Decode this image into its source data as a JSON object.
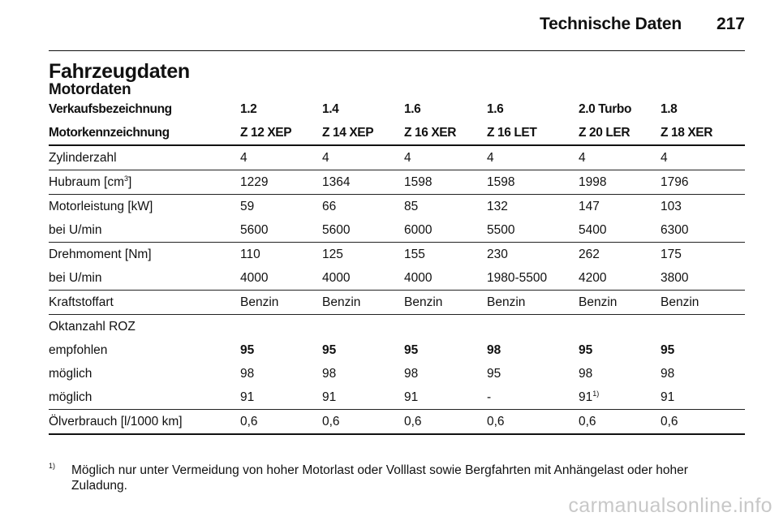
{
  "header": {
    "title": "Technische Daten",
    "page_number": "217"
  },
  "section_title": "Fahrzeugdaten",
  "section_subtitle": "Motordaten",
  "table": {
    "header_rows": [
      [
        "Verkaufsbezeichnung",
        "1.2",
        "1.4",
        "1.6",
        "1.6",
        "2.0 Turbo",
        "1.8"
      ],
      [
        "Motorkennzeichnung",
        "Z 12 XEP",
        "Z 14 XEP",
        "Z 16 XER",
        "Z 16 LET",
        "Z 20 LER",
        "Z 18 XER"
      ]
    ],
    "rows": {
      "zylinder": [
        "Zylinderzahl",
        "4",
        "4",
        "4",
        "4",
        "4",
        "4"
      ],
      "hubraum": {
        "label_pre": "Hubraum [cm",
        "label_sup": "3",
        "label_post": "]",
        "values": [
          "1229",
          "1364",
          "1598",
          "1598",
          "1998",
          "1796"
        ]
      },
      "leistung": [
        "Motorleistung [kW]",
        "59",
        "66",
        "85",
        "132",
        "147",
        "103"
      ],
      "leistung_umin": [
        "bei U/min",
        "5600",
        "5600",
        "6000",
        "5500",
        "5400",
        "6300"
      ],
      "drehmoment": [
        "Drehmoment [Nm]",
        "110",
        "125",
        "155",
        "230",
        "262",
        "175"
      ],
      "drehmoment_umin": [
        "bei U/min",
        "4000",
        "4000",
        "4000",
        "1980-5500",
        "4200",
        "3800"
      ],
      "kraftstoff": [
        "Kraftstoffart",
        "Benzin",
        "Benzin",
        "Benzin",
        "Benzin",
        "Benzin",
        "Benzin"
      ],
      "oktan": [
        "Oktanzahl ROZ"
      ],
      "empfohlen": [
        "empfohlen",
        "95",
        "95",
        "95",
        "98",
        "95",
        "95"
      ],
      "moeglich1": [
        "möglich",
        "98",
        "98",
        "98",
        "95",
        "98",
        "98"
      ],
      "moeglich2": {
        "label": "möglich",
        "values": [
          "91",
          "91",
          "91",
          "-",
          "91",
          "91"
        ],
        "footnote_ref": "1)"
      },
      "oel": [
        "Ölverbrauch [l/1000 km]",
        "0,6",
        "0,6",
        "0,6",
        "0,6",
        "0,6",
        "0,6"
      ]
    }
  },
  "footnote": {
    "marker": "1)",
    "text": "Möglich nur unter Vermeidung von hoher Motorlast oder Volllast sowie Bergfahrten mit Anhängelast oder hoher Zuladung."
  },
  "watermark": "carmanualsonline.info"
}
